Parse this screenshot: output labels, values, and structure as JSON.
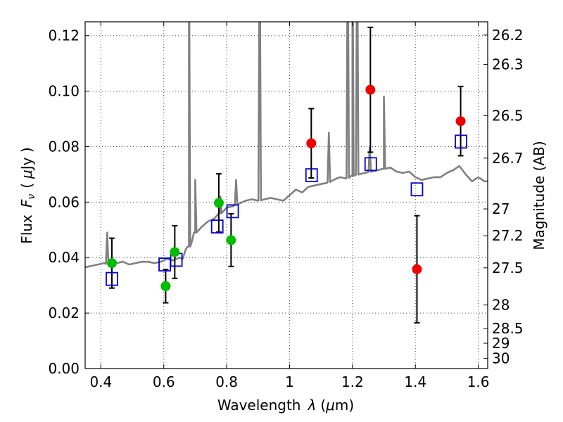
{
  "chart_data": {
    "type": "scatter",
    "xlabel_main": "Wavelength",
    "xlabel_symbol": "λ",
    "xlabel_unit_open": "(",
    "xlabel_unit_mu": "μ",
    "xlabel_unit_rest": "m)",
    "ylabel_main": "Flux",
    "ylabel_symbol": "F",
    "ylabel_sub": "ν",
    "ylabel_unit_open": "(",
    "ylabel_unit_mu": "μ",
    "ylabel_unit_rest": "Jy )",
    "y2label": "Magnitude (AB)",
    "xlim": [
      0.35,
      1.63
    ],
    "ylim": [
      0.0,
      0.125
    ],
    "grid": true,
    "xticks": [
      0.4,
      0.6,
      0.8,
      1.0,
      1.2,
      1.4,
      1.6
    ],
    "xtick_labels": [
      "0.4",
      "0.6",
      "0.8",
      "1",
      "1.2",
      "1.4",
      "1.6"
    ],
    "yticks": [
      0.0,
      0.02,
      0.04,
      0.06,
      0.08,
      0.1,
      0.12
    ],
    "ytick_labels": [
      "0.00",
      "0.02",
      "0.04",
      "0.06",
      "0.08",
      "0.10",
      "0.12"
    ],
    "mag_ticks": [
      26.2,
      26.3,
      26.5,
      26.7,
      27,
      27.2,
      27.5,
      28,
      28.5,
      29,
      30
    ],
    "mag_tick_labels": [
      "26.2",
      "26.3",
      "26.5",
      "26.7",
      "27",
      "27.2",
      "27.5",
      "28",
      "28.5",
      "29",
      "30"
    ],
    "series": [
      {
        "name": "green_observed",
        "color": "#00bb00",
        "points": [
          {
            "x": 0.435,
            "y": 0.038,
            "err": 0.009
          },
          {
            "x": 0.606,
            "y": 0.0297,
            "err": 0.006
          },
          {
            "x": 0.635,
            "y": 0.042,
            "err": 0.0095
          },
          {
            "x": 0.775,
            "y": 0.0597,
            "err": 0.0105
          },
          {
            "x": 0.814,
            "y": 0.0463,
            "err": 0.0095
          }
        ]
      },
      {
        "name": "red_observed",
        "color": "#ee0000",
        "points": [
          {
            "x": 1.069,
            "y": 0.0812,
            "err": 0.0125
          },
          {
            "x": 1.257,
            "y": 0.1005,
            "err": 0.0225
          },
          {
            "x": 1.405,
            "y": 0.0358,
            "err": 0.0193
          },
          {
            "x": 1.544,
            "y": 0.0892,
            "err": 0.0125
          }
        ]
      },
      {
        "name": "model_photometry",
        "color": "#0000cc",
        "points": [
          {
            "x": 0.435,
            "y": 0.0323
          },
          {
            "x": 0.603,
            "y": 0.0375
          },
          {
            "x": 0.64,
            "y": 0.0392
          },
          {
            "x": 0.77,
            "y": 0.0512
          },
          {
            "x": 0.819,
            "y": 0.0567
          },
          {
            "x": 1.07,
            "y": 0.0697
          },
          {
            "x": 1.258,
            "y": 0.0737
          },
          {
            "x": 1.405,
            "y": 0.0646
          },
          {
            "x": 1.545,
            "y": 0.0818
          }
        ]
      }
    ],
    "spectrum": {
      "color": "#808080",
      "x": [
        0.35,
        0.37,
        0.39,
        0.41,
        0.43,
        0.45,
        0.47,
        0.49,
        0.51,
        0.53,
        0.55,
        0.57,
        0.59,
        0.61,
        0.63,
        0.65,
        0.66,
        0.67,
        0.68,
        0.69,
        0.7,
        0.72,
        0.74,
        0.76,
        0.78,
        0.8,
        0.82,
        0.84,
        0.86,
        0.88,
        0.9,
        0.92,
        0.94,
        0.96,
        0.98,
        1.0,
        1.02,
        1.04,
        1.06,
        1.08,
        1.1,
        1.12,
        1.14,
        1.16,
        1.18,
        1.2,
        1.22,
        1.24,
        1.26,
        1.28,
        1.3,
        1.32,
        1.34,
        1.36,
        1.38,
        1.4,
        1.42,
        1.44,
        1.46,
        1.48,
        1.5,
        1.52,
        1.54,
        1.56,
        1.58,
        1.6,
        1.62,
        1.63
      ],
      "y": [
        0.0365,
        0.037,
        0.0375,
        0.038,
        0.0375,
        0.038,
        0.0385,
        0.0375,
        0.038,
        0.0385,
        0.0385,
        0.038,
        0.0385,
        0.0395,
        0.039,
        0.04,
        0.0395,
        0.043,
        0.044,
        0.046,
        0.049,
        0.051,
        0.053,
        0.054,
        0.056,
        0.058,
        0.0585,
        0.0595,
        0.0605,
        0.061,
        0.0605,
        0.061,
        0.0615,
        0.061,
        0.0605,
        0.0625,
        0.0645,
        0.0635,
        0.0655,
        0.066,
        0.0665,
        0.067,
        0.068,
        0.069,
        0.0685,
        0.0695,
        0.07,
        0.0705,
        0.071,
        0.0715,
        0.072,
        0.0725,
        0.071,
        0.0705,
        0.071,
        0.069,
        0.068,
        0.0685,
        0.069,
        0.069,
        0.0705,
        0.0715,
        0.073,
        0.07,
        0.0675,
        0.069,
        0.0675,
        0.0675
      ],
      "lines": [
        {
          "x": 0.42,
          "h": 0.049
        },
        {
          "x": 0.68,
          "h": 0.16
        },
        {
          "x": 0.7,
          "h": 0.068
        },
        {
          "x": 0.78,
          "h": 0.062
        },
        {
          "x": 0.83,
          "h": 0.068
        },
        {
          "x": 0.905,
          "h": 0.16
        },
        {
          "x": 1.125,
          "h": 0.085
        },
        {
          "x": 1.185,
          "h": 0.16
        },
        {
          "x": 1.2,
          "h": 0.16
        },
        {
          "x": 1.215,
          "h": 0.16
        },
        {
          "x": 1.255,
          "h": 0.08
        },
        {
          "x": 1.3,
          "h": 0.098
        }
      ]
    }
  }
}
